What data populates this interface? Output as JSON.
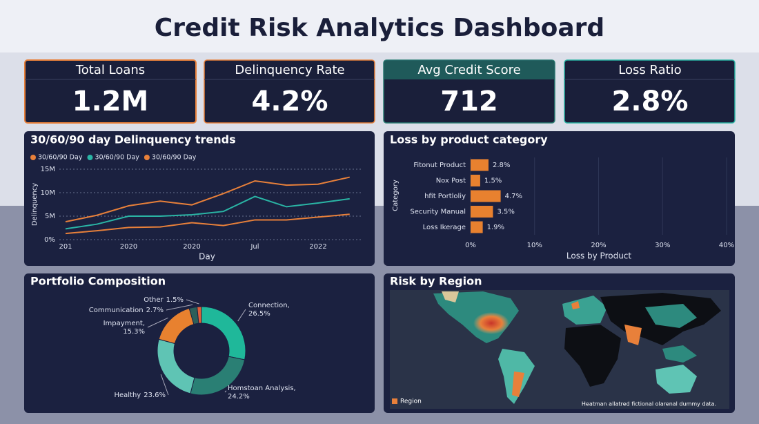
{
  "title": "Credit Risk Analytics Dashboard",
  "kpis": [
    {
      "label": "Total Loans",
      "value": "1.2M"
    },
    {
      "label": "Delinquency Rate",
      "value": "4.2%"
    },
    {
      "label": "Avg Credit Score",
      "value": "712"
    },
    {
      "label": "Loss Ratio",
      "value": "2.8%"
    }
  ],
  "chart_data": [
    {
      "type": "line",
      "title": "30/60/90 day Delinquency trends",
      "x_label": "Day",
      "y_label": "Delinquency",
      "categories": [
        "201",
        null,
        "2020",
        null,
        "2020",
        null,
        "Jul",
        null,
        "2022",
        null
      ],
      "series": [
        {
          "name": "30/60/90 Day",
          "color": "#e8803a",
          "values": [
            3.8,
            5.2,
            7.2,
            8.2,
            7.4,
            9.8,
            12.5,
            11.6,
            11.8,
            13.3
          ]
        },
        {
          "name": "30/60/90 Day",
          "color": "#2ab5a5",
          "values": [
            2.3,
            3.3,
            5.0,
            5.0,
            5.3,
            6.0,
            9.2,
            7.0,
            7.8,
            8.7
          ]
        },
        {
          "name": "30/60/90 Day",
          "color": "#e8803a",
          "values": [
            1.3,
            1.9,
            2.6,
            2.7,
            3.6,
            3.0,
            4.2,
            4.2,
            4.8,
            5.4
          ]
        }
      ],
      "ylim": [
        0,
        15
      ],
      "yticks": [
        {
          "value": 0,
          "label": "0%"
        },
        {
          "value": 5,
          "label": "5M"
        },
        {
          "value": 10,
          "label": "10M"
        },
        {
          "value": 15,
          "label": "15M"
        }
      ],
      "grid": true
    },
    {
      "type": "hbar",
      "title": "Loss by product category",
      "x_label": "Loss by Product",
      "y_label": "Category",
      "categories": [
        "Fitonut Product",
        "Nox Post",
        "hfit Portloliy",
        "Security Manual",
        "Loss Ikerage"
      ],
      "values": [
        2.8,
        1.5,
        4.7,
        3.5,
        1.9
      ],
      "value_labels": [
        "2.8%",
        "1.5%",
        "4.7%",
        "3.5%",
        "1.9%"
      ],
      "color": "#e8812f",
      "xlim": [
        0,
        40
      ],
      "xticks": [
        {
          "value": 0,
          "label": "0%"
        },
        {
          "value": 10,
          "label": "10%"
        },
        {
          "value": 20,
          "label": "20%"
        },
        {
          "value": 30,
          "label": "30%"
        },
        {
          "value": 40,
          "label": "40%"
        }
      ]
    },
    {
      "type": "donut",
      "title": "Portfolio Composition",
      "categories": [
        "Connection,",
        "Homstoan Analysis,",
        "Healthy",
        "Impayment,",
        "Communication",
        "Other"
      ],
      "values": [
        26.5,
        24.2,
        23.6,
        15.3,
        2.7,
        1.5
      ],
      "value_labels": [
        "26.5%",
        "24.2%",
        "23.6%",
        "15.3%",
        "2.7%",
        "1.5%"
      ],
      "colors": [
        "#1fb89a",
        "#2a7f74",
        "#5fc4b4",
        "#e8812f",
        "#2c5f5a",
        "#e0603a"
      ]
    }
  ],
  "map": {
    "title": "Risk by Region",
    "legend": "Region",
    "note": "Heatman allatred fictional olarenal dummy data."
  }
}
